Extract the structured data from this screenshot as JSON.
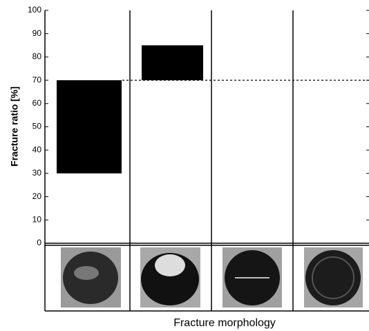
{
  "chart_data": {
    "type": "floating-bar",
    "categories": [
      null,
      null,
      null,
      null
    ],
    "lows": [
      30,
      70,
      null,
      null
    ],
    "highs": [
      70,
      85,
      null,
      null
    ],
    "color": "#000000",
    "ylim": [
      0,
      100
    ],
    "yticks": [
      0,
      10,
      20,
      30,
      40,
      50,
      60,
      70,
      80,
      90,
      100
    ],
    "reference_line": 70,
    "ylabel": "Fracture ratio  [%]",
    "xlabel": "Fracture morphology"
  }
}
